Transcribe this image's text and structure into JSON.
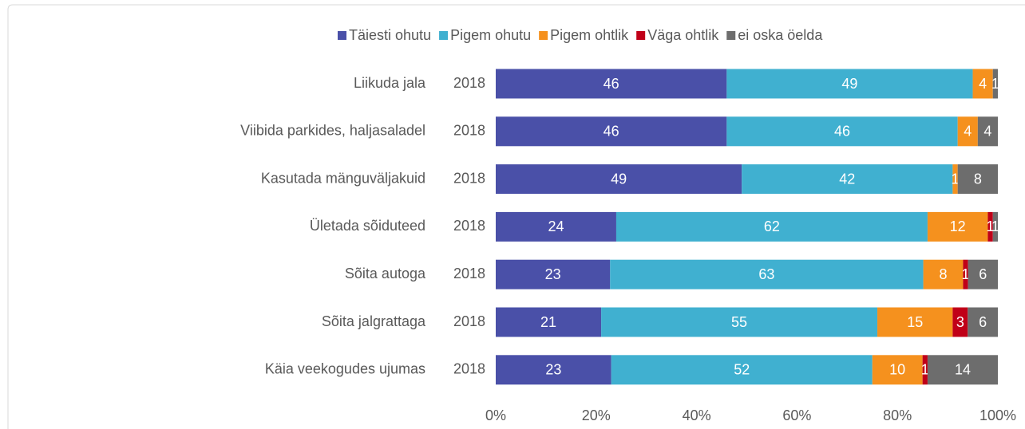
{
  "chart_data": {
    "type": "stacked_bar_100",
    "categories": [
      "Liikuda jala",
      "Viibida parkides, haljasaladel",
      "Kasutada mänguväljakuid",
      "Ületada sõiduteed",
      "Sõita autoga",
      "Sõita jalgrattaga",
      "Käia veekogudes ujumas"
    ],
    "sub_labels": [
      "2018",
      "2018",
      "2018",
      "2018",
      "2018",
      "2018",
      "2018"
    ],
    "series": [
      {
        "name": "Täiesti ohutu",
        "color": "#4a50a8",
        "values": [
          46,
          46,
          49,
          24,
          23,
          21,
          23
        ]
      },
      {
        "name": "Pigem ohutu",
        "color": "#40b0d0",
        "values": [
          49,
          46,
          42,
          62,
          63,
          55,
          52
        ]
      },
      {
        "name": "Pigem ohtlik",
        "color": "#f5911e",
        "values": [
          4,
          4,
          1,
          12,
          8,
          15,
          10
        ]
      },
      {
        "name": "Väga ohtlik",
        "color": "#c00018",
        "values": [
          null,
          null,
          null,
          1,
          1,
          3,
          1
        ]
      },
      {
        "name": "ei oska öelda",
        "color": "#6d6d6d",
        "values": [
          1,
          4,
          8,
          1,
          6,
          6,
          14
        ]
      }
    ],
    "xlim": [
      0,
      100
    ],
    "xticks": [
      {
        "value": 0,
        "label": "0%"
      },
      {
        "value": 20,
        "label": "20%"
      },
      {
        "value": 40,
        "label": "40%"
      },
      {
        "value": 60,
        "label": "60%"
      },
      {
        "value": 80,
        "label": "80%"
      },
      {
        "value": 100,
        "label": "100%"
      }
    ],
    "legend": "top"
  }
}
